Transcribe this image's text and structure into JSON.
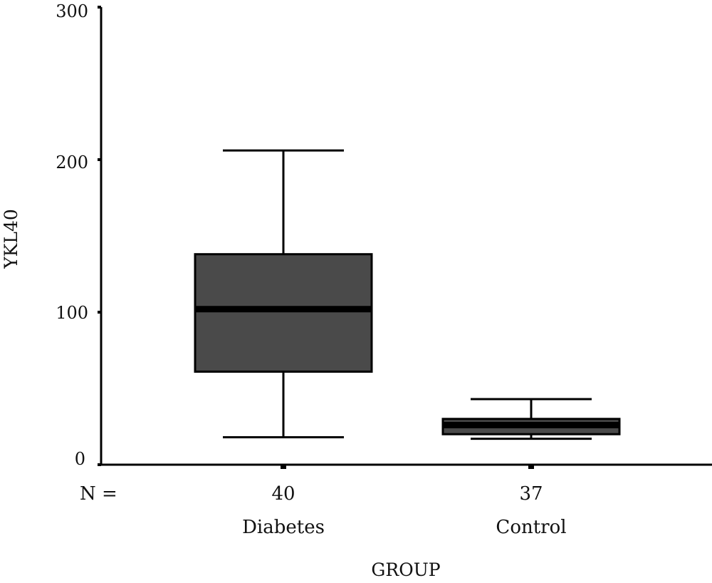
{
  "chart_data": {
    "type": "boxplot",
    "xlabel": "GROUP",
    "ylabel": "YKL40",
    "ylim": [
      0,
      300
    ],
    "yticks": [
      0,
      100,
      200,
      300
    ],
    "n_label": "N =",
    "categories": [
      "Diabetes",
      "Control"
    ],
    "boxes": [
      {
        "category": "Diabetes",
        "n": "40",
        "whisker_low": 18,
        "q1": 61,
        "median": 102,
        "q3": 138,
        "whisker_high": 206
      },
      {
        "category": "Control",
        "n": "37",
        "whisker_low": 17,
        "q1": 20,
        "median": 26,
        "q3": 30,
        "whisker_high": 43
      }
    ],
    "colors": {
      "box_fill": "#4a4a4a",
      "median": "#000000",
      "line": "#000000"
    }
  }
}
